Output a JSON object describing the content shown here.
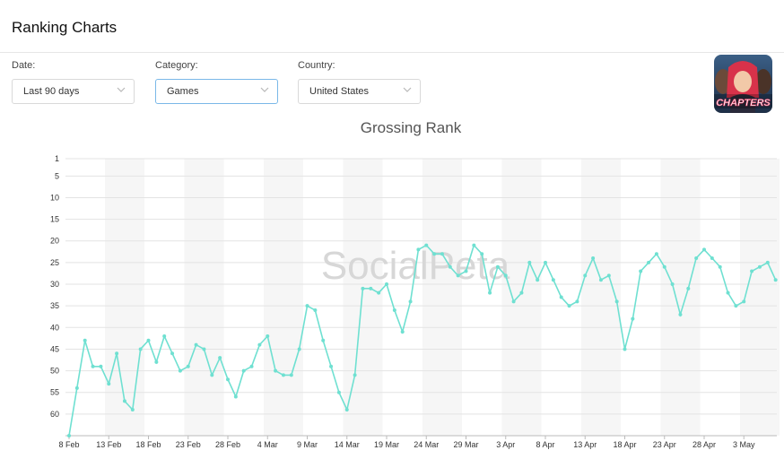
{
  "page": {
    "title": "Ranking Charts"
  },
  "filters": {
    "date": {
      "label": "Date:",
      "value": "Last 90 days"
    },
    "category": {
      "label": "Category:",
      "value": "Games"
    },
    "country": {
      "label": "Country:",
      "value": "United States"
    }
  },
  "app_icon": {
    "label": "CHAPTERS",
    "accent": "#e0325a"
  },
  "watermark": "SocialPeta",
  "colors": {
    "line": "#6fe0d1",
    "grid": "#e3e3e3",
    "band": "#f6f6f6"
  },
  "chart_data": {
    "type": "line",
    "title": "Grossing Rank",
    "xlabel": "",
    "ylabel": "",
    "y_reversed": true,
    "ylim": [
      1,
      65
    ],
    "yticks": [
      1,
      5,
      10,
      15,
      20,
      25,
      30,
      35,
      40,
      45,
      50,
      55,
      60
    ],
    "x_tick_labels": [
      "8 Feb",
      "13 Feb",
      "18 Feb",
      "23 Feb",
      "28 Feb",
      "4 Mar",
      "9 Mar",
      "14 Mar",
      "19 Mar",
      "24 Mar",
      "29 Mar",
      "3 Apr",
      "8 Apr",
      "13 Apr",
      "18 Apr",
      "23 Apr",
      "28 Apr",
      "3 May"
    ],
    "x_start": "8 Feb",
    "series": [
      {
        "values": [
          65,
          54,
          43,
          49,
          49,
          53,
          46,
          57,
          59,
          45,
          43,
          48,
          42,
          46,
          50,
          49,
          44,
          45,
          51,
          47,
          52,
          56,
          50,
          49,
          44,
          42,
          50,
          51,
          51,
          45,
          35,
          36,
          43,
          49,
          55,
          59,
          51,
          31,
          31,
          32,
          30,
          36,
          41,
          34,
          22,
          21,
          23,
          23,
          26,
          28,
          27,
          21,
          23,
          32,
          26,
          28,
          34,
          32,
          25,
          29,
          25,
          29,
          33,
          35,
          34,
          28,
          24,
          29,
          28,
          34,
          45,
          38,
          27,
          25,
          23,
          26,
          30,
          37,
          31,
          24,
          22,
          24,
          26,
          32,
          35,
          34,
          27,
          26,
          25,
          29
        ]
      }
    ],
    "grid": true,
    "legend": "none"
  }
}
